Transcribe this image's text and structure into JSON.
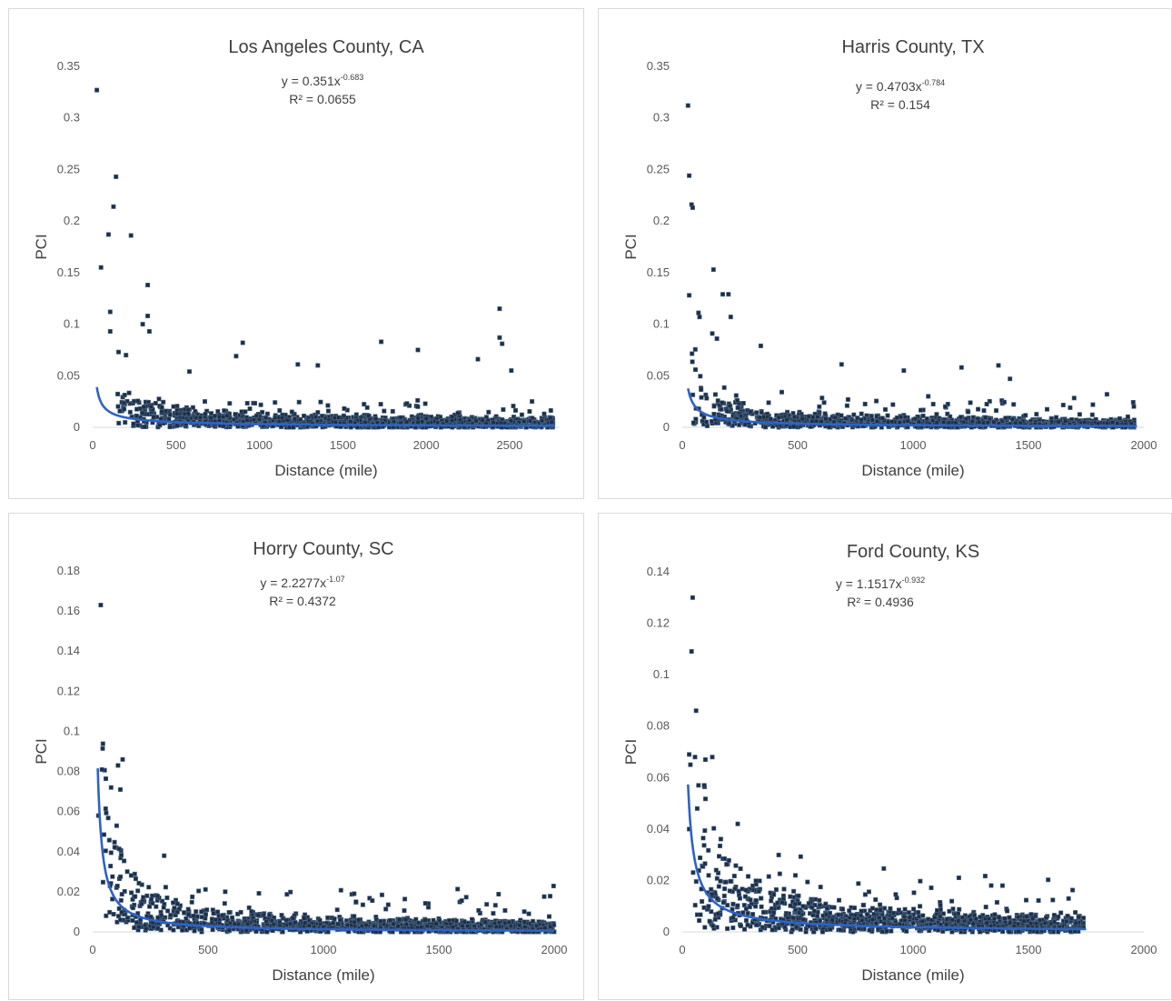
{
  "colors": {
    "points": "#1f2d44",
    "point_edge": "#4a6a8a",
    "trendline": "#2e63c7",
    "axis": "#d9d9d9",
    "text": "#404040"
  },
  "chart_data": [
    {
      "type": "scatter",
      "title": "Los Angeles County, CA",
      "xlabel": "Distance (mile)",
      "ylabel": "PCI",
      "xlim": [
        0,
        2800
      ],
      "ylim": [
        0,
        0.35
      ],
      "xticks": [
        "0",
        "500",
        "1000",
        "1500",
        "2000",
        "2500"
      ],
      "yticks": [
        "0",
        "0.05",
        "0.1",
        "0.15",
        "0.2",
        "0.25",
        "0.3",
        "0.35"
      ],
      "grid": false,
      "legend": "none",
      "trendline": {
        "type": "power",
        "a": 0.351,
        "b": -0.683,
        "equation": "y = 0.351x",
        "exponent": "-0.683",
        "r2_label": "R² = 0.0655",
        "x_range": [
          25,
          2770
        ]
      },
      "notable_points": [
        [
          25,
          0.327
        ],
        [
          50,
          0.155
        ],
        [
          95,
          0.187
        ],
        [
          105,
          0.112
        ],
        [
          105,
          0.093
        ],
        [
          140,
          0.243
        ],
        [
          125,
          0.214
        ],
        [
          230,
          0.186
        ],
        [
          155,
          0.073
        ],
        [
          200,
          0.07
        ],
        [
          330,
          0.138
        ],
        [
          300,
          0.1
        ],
        [
          330,
          0.108
        ],
        [
          340,
          0.093
        ],
        [
          900,
          0.082
        ],
        [
          860,
          0.069
        ],
        [
          1230,
          0.061
        ],
        [
          1350,
          0.06
        ],
        [
          1730,
          0.083
        ],
        [
          1950,
          0.075
        ],
        [
          2310,
          0.066
        ],
        [
          2440,
          0.115
        ],
        [
          2440,
          0.087
        ],
        [
          2455,
          0.081
        ],
        [
          2510,
          0.055
        ],
        [
          580,
          0.054
        ]
      ],
      "cluster": {
        "x_range": [
          150,
          2760
        ],
        "y_typical_max": 0.025,
        "description": "dense band of points near zero"
      }
    },
    {
      "type": "scatter",
      "title": "Harris County, TX",
      "xlabel": "Distance (mile)",
      "ylabel": "PCI",
      "xlim": [
        0,
        2000
      ],
      "ylim": [
        0,
        0.35
      ],
      "xticks": [
        "0",
        "500",
        "1000",
        "1500",
        "2000"
      ],
      "yticks": [
        "0",
        "0.05",
        "0.1",
        "0.15",
        "0.2",
        "0.25",
        "0.3",
        "0.35"
      ],
      "grid": false,
      "legend": "none",
      "trendline": {
        "type": "power",
        "a": 0.4703,
        "b": -0.784,
        "equation": "y = 0.4703x",
        "exponent": "-0.784",
        "r2_label": "R² = 0.154",
        "x_range": [
          25,
          1970
        ]
      },
      "notable_points": [
        [
          25,
          0.312
        ],
        [
          30,
          0.244
        ],
        [
          40,
          0.216
        ],
        [
          45,
          0.213
        ],
        [
          30,
          0.128
        ],
        [
          70,
          0.111
        ],
        [
          75,
          0.107
        ],
        [
          135,
          0.153
        ],
        [
          175,
          0.129
        ],
        [
          200,
          0.129
        ],
        [
          210,
          0.107
        ],
        [
          150,
          0.086
        ],
        [
          130,
          0.091
        ],
        [
          340,
          0.079
        ],
        [
          690,
          0.061
        ],
        [
          960,
          0.055
        ],
        [
          1210,
          0.058
        ],
        [
          1370,
          0.06
        ],
        [
          1420,
          0.047
        ],
        [
          1840,
          0.032
        ]
      ],
      "cluster": {
        "x_range": [
          40,
          1960
        ],
        "y_typical_max": 0.025,
        "description": "dense band of points near zero"
      }
    },
    {
      "type": "scatter",
      "title": "Horry County, SC",
      "xlabel": "Distance (mile)",
      "ylabel": "PCI",
      "xlim": [
        0,
        2000
      ],
      "ylim": [
        0,
        0.18
      ],
      "xticks": [
        "0",
        "500",
        "1000",
        "1500",
        "2000"
      ],
      "yticks": [
        "0",
        "0.02",
        "0.04",
        "0.06",
        "0.08",
        "0.1",
        "0.12",
        "0.14",
        "0.16",
        "0.18"
      ],
      "grid": false,
      "legend": "none",
      "trendline": {
        "type": "power",
        "a": 2.2277,
        "b": -1.07,
        "equation": "y = 2.2277x",
        "exponent": "-1.07",
        "r2_label": "R² = 0.4372",
        "x_range": [
          22,
          2000
        ]
      },
      "notable_points": [
        [
          35,
          0.163
        ],
        [
          25,
          0.058
        ],
        [
          40,
          0.081
        ],
        [
          80,
          0.072
        ],
        [
          110,
          0.083
        ],
        [
          130,
          0.086
        ],
        [
          120,
          0.071
        ],
        [
          310,
          0.038
        ],
        [
          1060,
          0.011
        ],
        [
          1890,
          0.009
        ]
      ],
      "cluster": {
        "x_range": [
          30,
          2000
        ],
        "y_typical_max": 0.02,
        "description": "dense band of points near zero"
      }
    },
    {
      "type": "scatter",
      "title": "Ford County, KS",
      "xlabel": "Distance (mile)",
      "ylabel": "PCI",
      "xlim": [
        0,
        2000
      ],
      "ylim": [
        0,
        0.14
      ],
      "xticks": [
        "0",
        "500",
        "1000",
        "1500",
        "2000"
      ],
      "yticks": [
        "0",
        "0.02",
        "0.04",
        "0.06",
        "0.08",
        "0.1",
        "0.12",
        "0.14"
      ],
      "grid": false,
      "legend": "none",
      "trendline": {
        "type": "power",
        "a": 1.1517,
        "b": -0.932,
        "equation": "y = 1.1517x",
        "exponent": "-0.932",
        "r2_label": "R² = 0.4936",
        "x_range": [
          25,
          1750
        ]
      },
      "notable_points": [
        [
          45,
          0.13
        ],
        [
          60,
          0.086
        ],
        [
          35,
          0.065
        ],
        [
          30,
          0.069
        ],
        [
          55,
          0.068
        ],
        [
          100,
          0.067
        ],
        [
          130,
          0.068
        ],
        [
          95,
          0.057
        ],
        [
          70,
          0.057
        ],
        [
          240,
          0.042
        ],
        [
          490,
          0.022
        ],
        [
          30,
          0.04
        ]
      ],
      "cluster": {
        "x_range": [
          30,
          1740
        ],
        "y_typical_max": 0.02,
        "description": "dense band of points near zero"
      }
    }
  ]
}
